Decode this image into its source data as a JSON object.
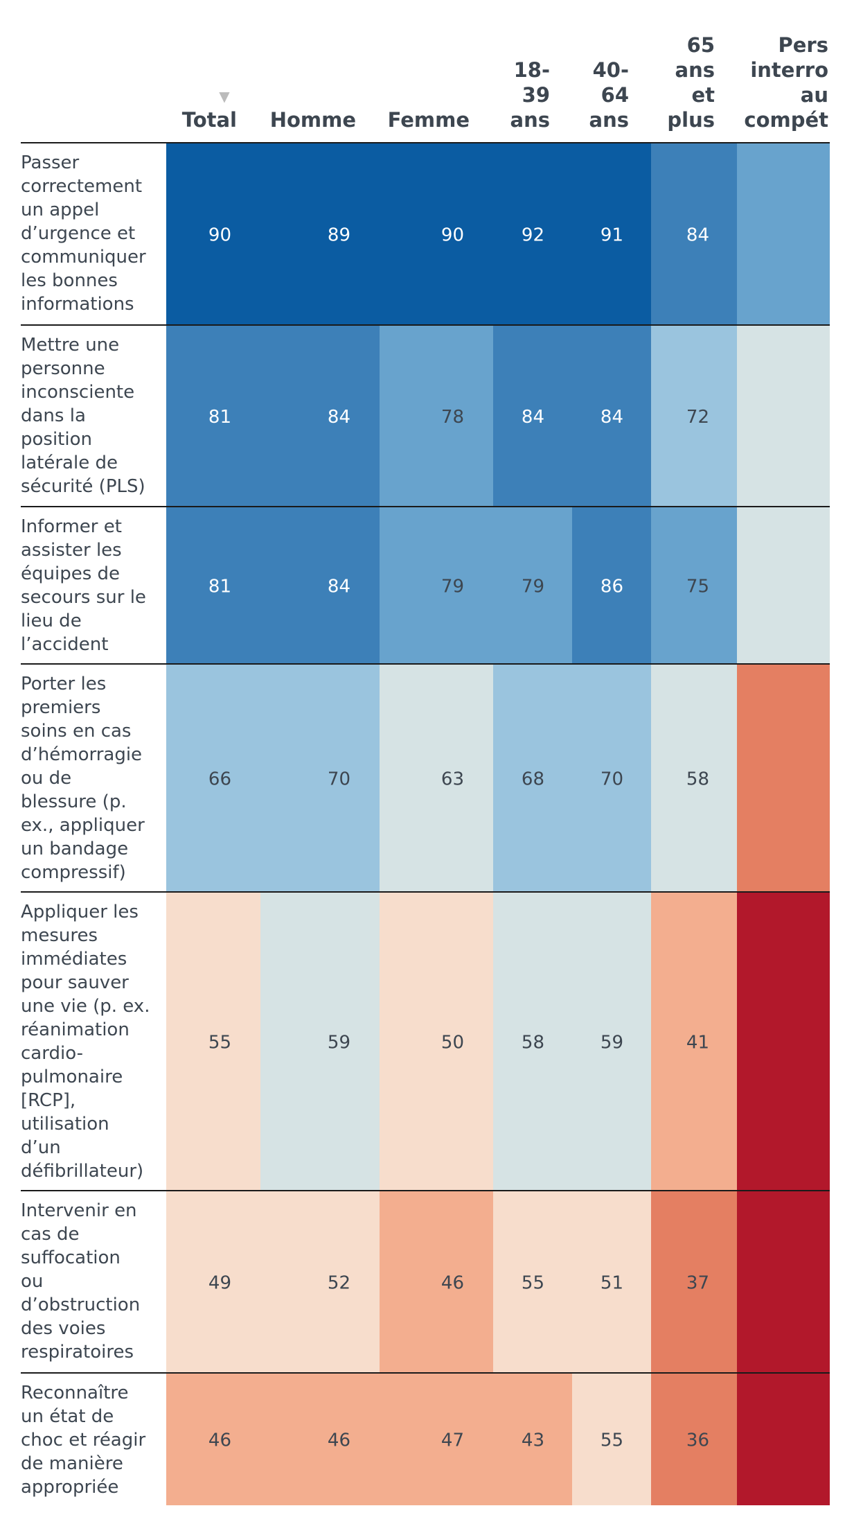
{
  "chart_data": {
    "type": "table",
    "sort_indicator": "▼",
    "columns": [
      {
        "key": "total",
        "label_lines": [
          "Total"
        ]
      },
      {
        "key": "homme",
        "label_lines": [
          "Homme"
        ]
      },
      {
        "key": "femme",
        "label_lines": [
          "Femme"
        ]
      },
      {
        "key": "a18_39",
        "label_lines": [
          "18-",
          "39",
          "ans"
        ]
      },
      {
        "key": "a40_64",
        "label_lines": [
          "40-",
          "64",
          "ans"
        ]
      },
      {
        "key": "a65",
        "label_lines": [
          "65",
          "ans",
          "et",
          "plus"
        ]
      },
      {
        "key": "pers",
        "label_lines": [
          "Pers",
          "interro",
          "au",
          "compét"
        ]
      }
    ],
    "rows": [
      {
        "label_lines": [
          "Passer",
          "correctement",
          "un appel",
          "d’urgence et",
          "communiquer",
          "les bonnes",
          "informations"
        ],
        "values": [
          90,
          89,
          90,
          92,
          91,
          84,
          null
        ]
      },
      {
        "label_lines": [
          "Mettre une",
          "personne",
          "inconsciente",
          "dans la",
          "position",
          "latérale de",
          "sécurité (PLS)"
        ],
        "values": [
          81,
          84,
          78,
          84,
          84,
          72,
          null
        ]
      },
      {
        "label_lines": [
          "Informer et",
          "assister les",
          "équipes de",
          "secours sur le",
          "lieu de",
          "l’accident"
        ],
        "values": [
          81,
          84,
          79,
          79,
          86,
          75,
          null
        ]
      },
      {
        "label_lines": [
          "Porter les",
          "premiers",
          "soins en cas",
          "d’hémorragie",
          "ou de",
          "blessure (p.",
          "ex., appliquer",
          "un bandage",
          "compressif)"
        ],
        "values": [
          66,
          70,
          63,
          68,
          70,
          58,
          null
        ]
      },
      {
        "label_lines": [
          "Appliquer les",
          "mesures",
          "immédiates",
          "pour sauver",
          "une vie (p. ex.",
          "réanimation",
          "cardio-",
          "pulmonaire",
          "[RCP],",
          "utilisation",
          "d’un",
          "défibrillateur)"
        ],
        "values": [
          55,
          59,
          50,
          58,
          59,
          41,
          null
        ]
      },
      {
        "label_lines": [
          "Intervenir en",
          "cas de",
          "suffocation",
          "ou",
          "d’obstruction",
          "des voies",
          "respiratoires"
        ],
        "values": [
          49,
          52,
          46,
          55,
          51,
          37,
          null
        ]
      },
      {
        "label_lines": [
          "Reconnaître",
          "un état de",
          "choc et réagir",
          "de manière",
          "appropriée"
        ],
        "values": [
          46,
          46,
          47,
          43,
          55,
          36,
          null
        ]
      }
    ],
    "cell_colors": [
      [
        "#0b5ca2",
        "#0b5ca2",
        "#0b5ca2",
        "#0b5ca2",
        "#0b5ca2",
        "#3d80b8",
        "#68a3cd"
      ],
      [
        "#3d80b8",
        "#3d80b8",
        "#68a3cd",
        "#3d80b8",
        "#3d80b8",
        "#9ac4de",
        "#d6e3e4"
      ],
      [
        "#3d80b8",
        "#3d80b8",
        "#68a3cd",
        "#68a3cd",
        "#3d80b8",
        "#68a3cd",
        "#d6e3e4"
      ],
      [
        "#9ac4de",
        "#9ac4de",
        "#d6e3e4",
        "#9ac4de",
        "#9ac4de",
        "#d6e3e4",
        "#e47f62"
      ],
      [
        "#f7ddcc",
        "#d6e3e4",
        "#f7ddcc",
        "#d6e3e4",
        "#d6e3e4",
        "#f3ae8f",
        "#b2182b"
      ],
      [
        "#f7ddcc",
        "#f7ddcc",
        "#f3ae8f",
        "#f7ddcc",
        "#f7ddcc",
        "#e47f62",
        "#b2182b"
      ],
      [
        "#f3ae8f",
        "#f3ae8f",
        "#f3ae8f",
        "#f3ae8f",
        "#f7ddcc",
        "#e47f62",
        "#b2182b"
      ]
    ],
    "text_light": "#ffffff",
    "text_dark": "#3d4650",
    "header_color": "#3d4650",
    "label_color": "#3d4650",
    "sort_indicator_color": "#bbbbbb"
  }
}
